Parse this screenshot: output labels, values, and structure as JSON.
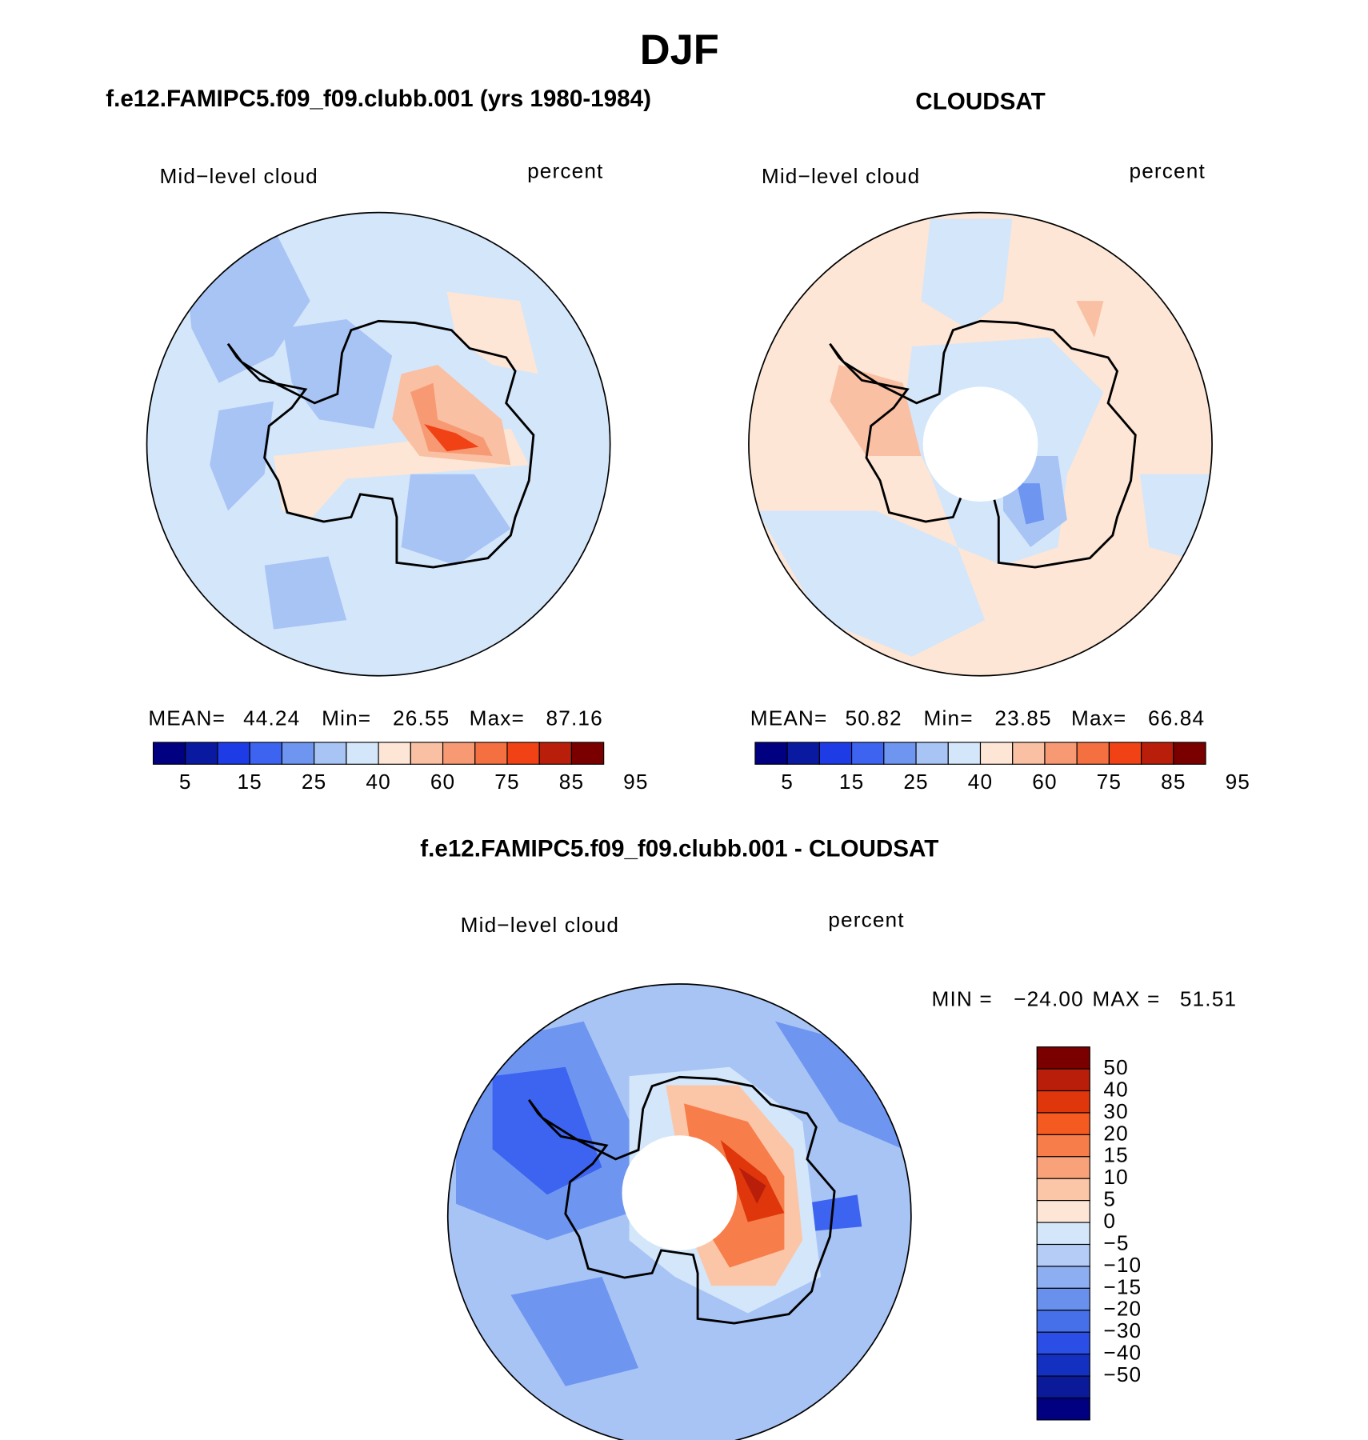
{
  "header": {
    "title": "DJF"
  },
  "panels": [
    {
      "title": "f.e12.FAMIPC5.f09_f09.clubb.001 (yrs 1980-1984)",
      "variable": "Mid−level cloud",
      "units": "percent",
      "stats": [
        "MEAN=",
        "44.24",
        "Min=",
        "26.55",
        "Max=",
        "87.16"
      ]
    },
    {
      "title": "CLOUDSAT",
      "variable": "Mid−level cloud",
      "units": "percent",
      "stats": [
        "MEAN=",
        "50.82",
        "Min=",
        "23.85",
        "Max=",
        "66.84"
      ]
    },
    {
      "title": "f.e12.FAMIPC5.f09_f09.clubb.001 - CLOUDSAT",
      "variable": "Mid−level cloud",
      "units": "percent",
      "stats": [
        "MIN =",
        "−24.00",
        "MAX =",
        "51.51"
      ]
    }
  ],
  "colorbars": {
    "field": {
      "colors": [
        "#000080",
        "#0a1aa0",
        "#1e3ce6",
        "#3c64f0",
        "#6e96f0",
        "#a8c4f5",
        "#d4e6fa",
        "#fde6d6",
        "#f9c0a4",
        "#f79a74",
        "#f57040",
        "#f04214",
        "#b81e0a",
        "#7a0000"
      ],
      "labels": [
        "5",
        "15",
        "25",
        "40",
        "60",
        "75",
        "85",
        "95"
      ]
    },
    "difference": {
      "colors": [
        "#7a0000",
        "#b81e0a",
        "#e0360c",
        "#f55a20",
        "#f77e4a",
        "#f9a27a",
        "#fbc6a8",
        "#fde6d6",
        "#d4e6fa",
        "#b4ccf6",
        "#8eaef2",
        "#6a90ee",
        "#4670ea",
        "#2a4ee6",
        "#1430c0",
        "#0a1a98",
        "#000080"
      ],
      "labels": [
        "50",
        "40",
        "30",
        "20",
        "15",
        "10",
        "5",
        "0",
        "−5",
        "−10",
        "−15",
        "−20",
        "−30",
        "−40",
        "−50"
      ]
    }
  }
}
